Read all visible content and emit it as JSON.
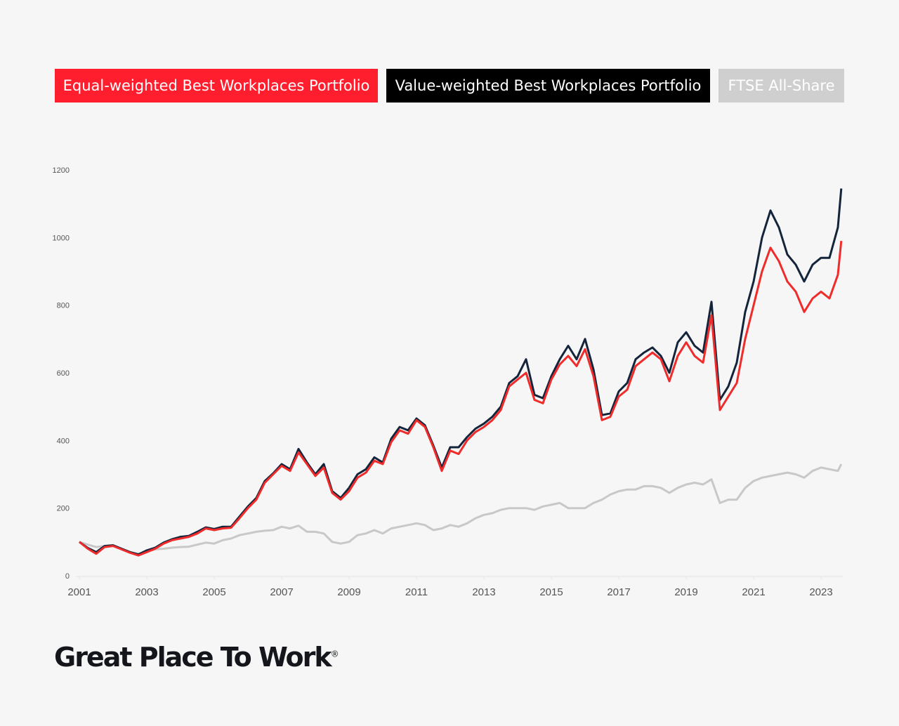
{
  "legend": [
    {
      "label": "Equal-weighted Best Workplaces Portfolio",
      "color": "#ff1e2d"
    },
    {
      "label": "Value-weighted Best Workplaces Portfolio",
      "color": "#000000"
    },
    {
      "label": "FTSE All-Share",
      "color": "#cfcfcf"
    }
  ],
  "logo": {
    "text": "Great Place To Work",
    "mark": "®"
  },
  "chart_data": {
    "type": "line",
    "title": "",
    "xlabel": "",
    "ylabel": "",
    "xlim": [
      2001,
      2023.7
    ],
    "ylim": [
      0,
      1200
    ],
    "x_ticks": [
      "2001",
      "2003",
      "2005",
      "2007",
      "2009",
      "2011",
      "2013",
      "2015",
      "2017",
      "2019",
      "2021",
      "2023"
    ],
    "y_ticks": [
      "0",
      "200",
      "400",
      "600",
      "800",
      "1000",
      "1200"
    ],
    "grid": false,
    "legend_position": "top",
    "x": [
      2001.0,
      2001.25,
      2001.5,
      2001.75,
      2002.0,
      2002.25,
      2002.5,
      2002.75,
      2003.0,
      2003.25,
      2003.5,
      2003.75,
      2004.0,
      2004.25,
      2004.5,
      2004.75,
      2005.0,
      2005.25,
      2005.5,
      2005.75,
      2006.0,
      2006.25,
      2006.5,
      2006.75,
      2007.0,
      2007.25,
      2007.5,
      2007.75,
      2008.0,
      2008.25,
      2008.5,
      2008.75,
      2009.0,
      2009.25,
      2009.5,
      2009.75,
      2010.0,
      2010.25,
      2010.5,
      2010.75,
      2011.0,
      2011.25,
      2011.5,
      2011.75,
      2012.0,
      2012.25,
      2012.5,
      2012.75,
      2013.0,
      2013.25,
      2013.5,
      2013.75,
      2014.0,
      2014.25,
      2014.5,
      2014.75,
      2015.0,
      2015.25,
      2015.5,
      2015.75,
      2016.0,
      2016.25,
      2016.5,
      2016.75,
      2017.0,
      2017.25,
      2017.5,
      2017.75,
      2018.0,
      2018.25,
      2018.5,
      2018.75,
      2019.0,
      2019.25,
      2019.5,
      2019.75,
      2020.0,
      2020.25,
      2020.5,
      2020.75,
      2021.0,
      2021.25,
      2021.5,
      2021.75,
      2022.0,
      2022.25,
      2022.5,
      2022.75,
      2023.0,
      2023.25,
      2023.5,
      2023.6
    ],
    "series": [
      {
        "name": "FTSE All-Share",
        "color": "#c8c8c8",
        "values": [
          100,
          92,
          85,
          88,
          90,
          80,
          70,
          65,
          72,
          78,
          80,
          83,
          85,
          86,
          92,
          98,
          95,
          105,
          110,
          120,
          125,
          130,
          133,
          135,
          145,
          140,
          148,
          130,
          130,
          125,
          100,
          95,
          100,
          120,
          125,
          135,
          125,
          140,
          145,
          150,
          155,
          150,
          135,
          140,
          150,
          145,
          155,
          170,
          180,
          185,
          195,
          200,
          200,
          200,
          195,
          205,
          210,
          215,
          200,
          200,
          200,
          215,
          225,
          240,
          250,
          255,
          255,
          265,
          265,
          260,
          245,
          260,
          270,
          275,
          270,
          285,
          215,
          225,
          225,
          260,
          280,
          290,
          295,
          300,
          305,
          300,
          290,
          310,
          320,
          315,
          310,
          330
        ]
      },
      {
        "name": "Value-weighted Best Workplaces Portfolio",
        "color": "#14243b",
        "values": [
          100,
          82,
          70,
          88,
          90,
          80,
          70,
          63,
          75,
          83,
          98,
          108,
          115,
          118,
          130,
          143,
          138,
          145,
          145,
          175,
          205,
          230,
          280,
          303,
          330,
          315,
          375,
          335,
          300,
          330,
          250,
          230,
          260,
          300,
          315,
          350,
          335,
          405,
          440,
          430,
          465,
          445,
          385,
          320,
          380,
          380,
          410,
          435,
          450,
          470,
          500,
          570,
          590,
          640,
          535,
          525,
          590,
          640,
          680,
          640,
          700,
          610,
          475,
          480,
          545,
          570,
          640,
          660,
          675,
          650,
          600,
          690,
          720,
          680,
          660,
          810,
          520,
          560,
          630,
          780,
          870,
          1000,
          1080,
          1030,
          950,
          920,
          870,
          920,
          940,
          940,
          1030,
          1145
        ]
      },
      {
        "name": "Equal-weighted Best Workplaces Portfolio",
        "color": "#ef2b2b",
        "values": [
          100,
          80,
          65,
          85,
          88,
          78,
          68,
          60,
          70,
          80,
          95,
          105,
          110,
          115,
          125,
          140,
          135,
          140,
          142,
          170,
          200,
          225,
          275,
          300,
          325,
          310,
          365,
          330,
          295,
          320,
          245,
          225,
          250,
          290,
          305,
          340,
          330,
          395,
          430,
          420,
          460,
          440,
          380,
          310,
          370,
          360,
          400,
          425,
          440,
          460,
          490,
          560,
          580,
          600,
          520,
          510,
          580,
          625,
          650,
          620,
          670,
          590,
          460,
          470,
          530,
          550,
          620,
          640,
          660,
          640,
          575,
          650,
          690,
          650,
          630,
          770,
          490,
          530,
          570,
          700,
          800,
          900,
          970,
          930,
          870,
          840,
          780,
          820,
          840,
          820,
          890,
          990
        ]
      }
    ]
  }
}
